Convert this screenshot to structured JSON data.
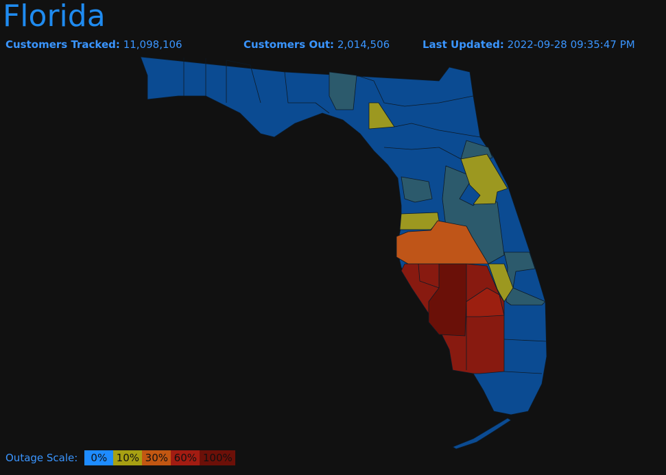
{
  "header": {
    "title": "Florida",
    "stats": [
      {
        "label": "Customers Tracked:",
        "value": "11,098,106"
      },
      {
        "label": "Customers Out:",
        "value": "2,014,506"
      },
      {
        "label": "Last Updated:",
        "value": "2022-09-28 09:35:47 PM"
      }
    ]
  },
  "legend": {
    "label": "Outage Scale:",
    "steps": [
      "0%",
      "10%",
      "30%",
      "60%",
      "100%"
    ]
  }
}
